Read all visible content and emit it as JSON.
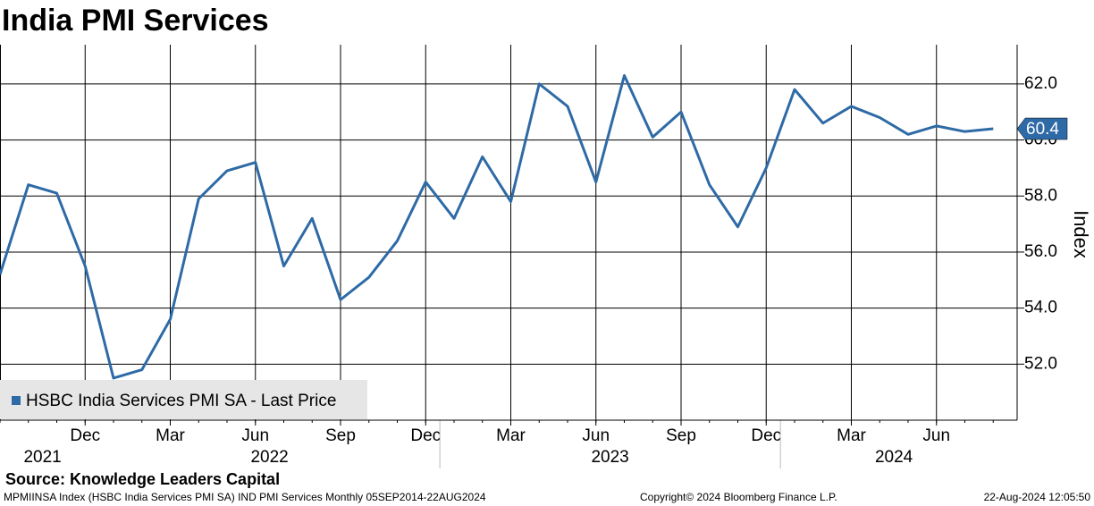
{
  "chart_data": {
    "type": "line",
    "title": "India PMI Services",
    "y_axis_label": "Index",
    "x": [
      "2021-09",
      "2021-10",
      "2021-11",
      "2021-12",
      "2022-01",
      "2022-02",
      "2022-03",
      "2022-04",
      "2022-05",
      "2022-06",
      "2022-07",
      "2022-08",
      "2022-09",
      "2022-10",
      "2022-11",
      "2022-12",
      "2023-01",
      "2023-02",
      "2023-03",
      "2023-04",
      "2023-05",
      "2023-06",
      "2023-07",
      "2023-08",
      "2023-09",
      "2023-10",
      "2023-11",
      "2023-12",
      "2024-01",
      "2024-02",
      "2024-03",
      "2024-04",
      "2024-05",
      "2024-06",
      "2024-07",
      "2024-08"
    ],
    "series": [
      {
        "name": "HSBC India Services PMI SA - Last Price",
        "color": "#2e6aa6",
        "values": [
          55.2,
          58.4,
          58.1,
          55.5,
          51.5,
          51.8,
          53.6,
          57.9,
          58.9,
          59.2,
          55.5,
          57.2,
          54.3,
          55.1,
          56.4,
          58.5,
          57.2,
          59.4,
          57.8,
          62.0,
          61.2,
          58.5,
          62.3,
          60.1,
          61.0,
          58.4,
          56.9,
          59.0,
          61.8,
          60.6,
          61.2,
          60.8,
          60.2,
          60.5,
          60.3,
          60.4
        ]
      }
    ],
    "ylim": [
      50,
      63.4
    ],
    "yticks": [
      {
        "value": 52,
        "label": "52.0"
      },
      {
        "value": 54,
        "label": "54.0"
      },
      {
        "value": 56,
        "label": "56.0"
      },
      {
        "value": 58,
        "label": "58.0"
      },
      {
        "value": 60,
        "label": "60.0"
      },
      {
        "value": 62,
        "label": "62.0"
      }
    ],
    "xticks": [
      {
        "value": "2021-12",
        "label": "Dec"
      },
      {
        "value": "2022-03",
        "label": "Mar"
      },
      {
        "value": "2022-06",
        "label": "Jun"
      },
      {
        "value": "2022-09",
        "label": "Sep"
      },
      {
        "value": "2022-12",
        "label": "Dec"
      },
      {
        "value": "2023-03",
        "label": "Mar"
      },
      {
        "value": "2023-06",
        "label": "Jun"
      },
      {
        "value": "2023-09",
        "label": "Sep"
      },
      {
        "value": "2023-12",
        "label": "Dec"
      },
      {
        "value": "2024-03",
        "label": "Mar"
      },
      {
        "value": "2024-06",
        "label": "Jun"
      }
    ],
    "year_labels": [
      "2021",
      "2022",
      "2023",
      "2024"
    ],
    "grid": true,
    "legend_position": "lower left",
    "source": "Source: Knowledge Leaders Capital",
    "footer_left": "MPMIINSA Index (HSBC India Services PMI SA) IND PMI Services  Monthly 05SEP2014-22AUG2024",
    "footer_center": "Copyright© 2024 Bloomberg Finance L.P.",
    "footer_right": "22-Aug-2024 12:05:50"
  }
}
